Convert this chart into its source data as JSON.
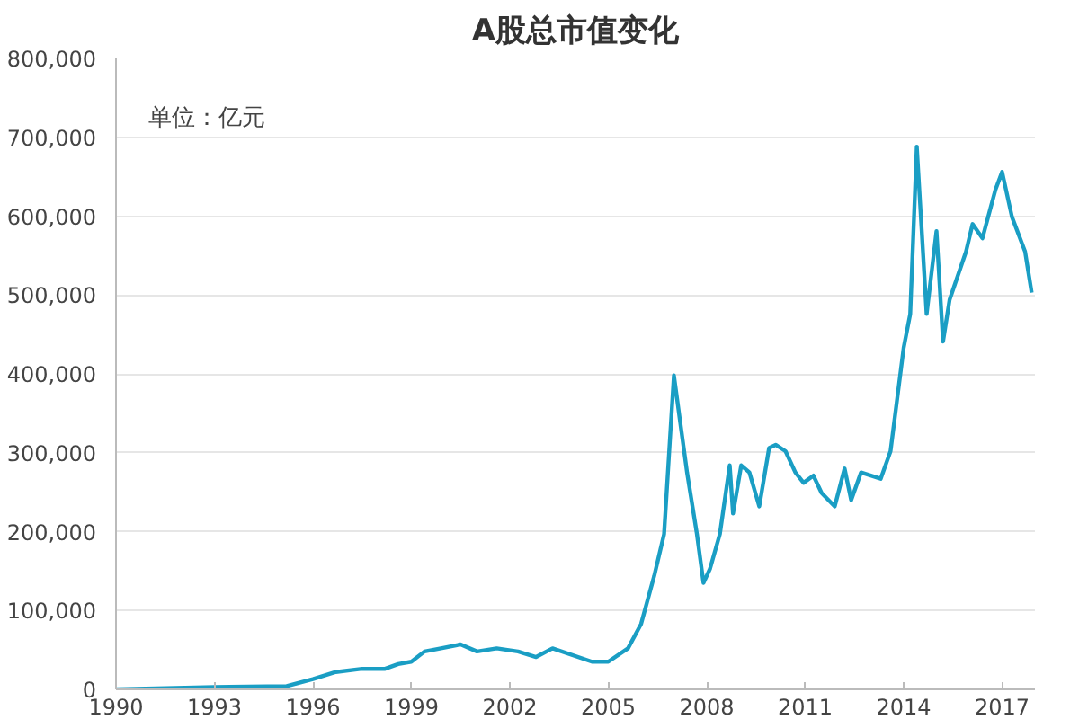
{
  "chart_data": {
    "type": "line",
    "title": "A股总市值变化",
    "annotations": [
      "单位：亿元"
    ],
    "x": [
      1990,
      1993,
      1995.2,
      1996,
      1996.7,
      1997.5,
      1998.2,
      1998.6,
      1999.0,
      1999.4,
      1999.9,
      2000.5,
      2001.0,
      2001.6,
      2002.25,
      2002.8,
      2003.3,
      2004.5,
      2005.0,
      2005.6,
      2006.0,
      2006.4,
      2006.7,
      2007.0,
      2007.2,
      2007.4,
      2007.7,
      2007.9,
      2008.1,
      2008.4,
      2008.7,
      2008.8,
      2009.05,
      2009.3,
      2009.6,
      2009.9,
      2010.1,
      2010.4,
      2010.7,
      2010.95,
      2011.25,
      2011.5,
      2011.9,
      2012.2,
      2012.4,
      2012.7,
      2013.3,
      2013.6,
      2014.0,
      2014.2,
      2014.4,
      2014.7,
      2015.0,
      2015.2,
      2015.4,
      2015.9,
      2016.1,
      2016.4,
      2016.8,
      2017.0,
      2017.3,
      2017.7,
      2017.9
    ],
    "series": [
      {
        "color": "#1a9ec4",
        "values": [
          0,
          3000,
          4000,
          13000,
          22000,
          26000,
          26000,
          32000,
          35000,
          48000,
          52000,
          57000,
          48000,
          52000,
          48000,
          41000,
          52000,
          35000,
          35000,
          52000,
          83000,
          144000,
          197000,
          398000,
          336000,
          275000,
          197000,
          135000,
          153000,
          197000,
          284000,
          223000,
          284000,
          275000,
          232000,
          306000,
          310000,
          302000,
          275000,
          262000,
          271000,
          249000,
          232000,
          280000,
          240000,
          275000,
          267000,
          302000,
          433000,
          476000,
          688000,
          476000,
          581000,
          441000,
          494000,
          555000,
          590000,
          572000,
          634000,
          656000,
          599000,
          555000,
          503000
        ]
      }
    ],
    "xlim": [
      1990,
      2018
    ],
    "xticks": [
      1990,
      1993,
      1996,
      1999,
      2002,
      2005,
      2008,
      2011,
      2014,
      2017
    ],
    "ylim": [
      0,
      800000
    ],
    "yticks": [
      {
        "value": 0,
        "label": "0"
      },
      {
        "value": 100000,
        "label": "100,000"
      },
      {
        "value": 200000,
        "label": "200,000"
      },
      {
        "value": 300000,
        "label": "300,000"
      },
      {
        "value": 400000,
        "label": "400,000"
      },
      {
        "value": 500000,
        "label": "500,000"
      },
      {
        "value": 600000,
        "label": "600,000"
      },
      {
        "value": 700000,
        "label": "700,000"
      },
      {
        "value": 800000,
        "label": "800,000"
      }
    ],
    "grid": "y"
  }
}
